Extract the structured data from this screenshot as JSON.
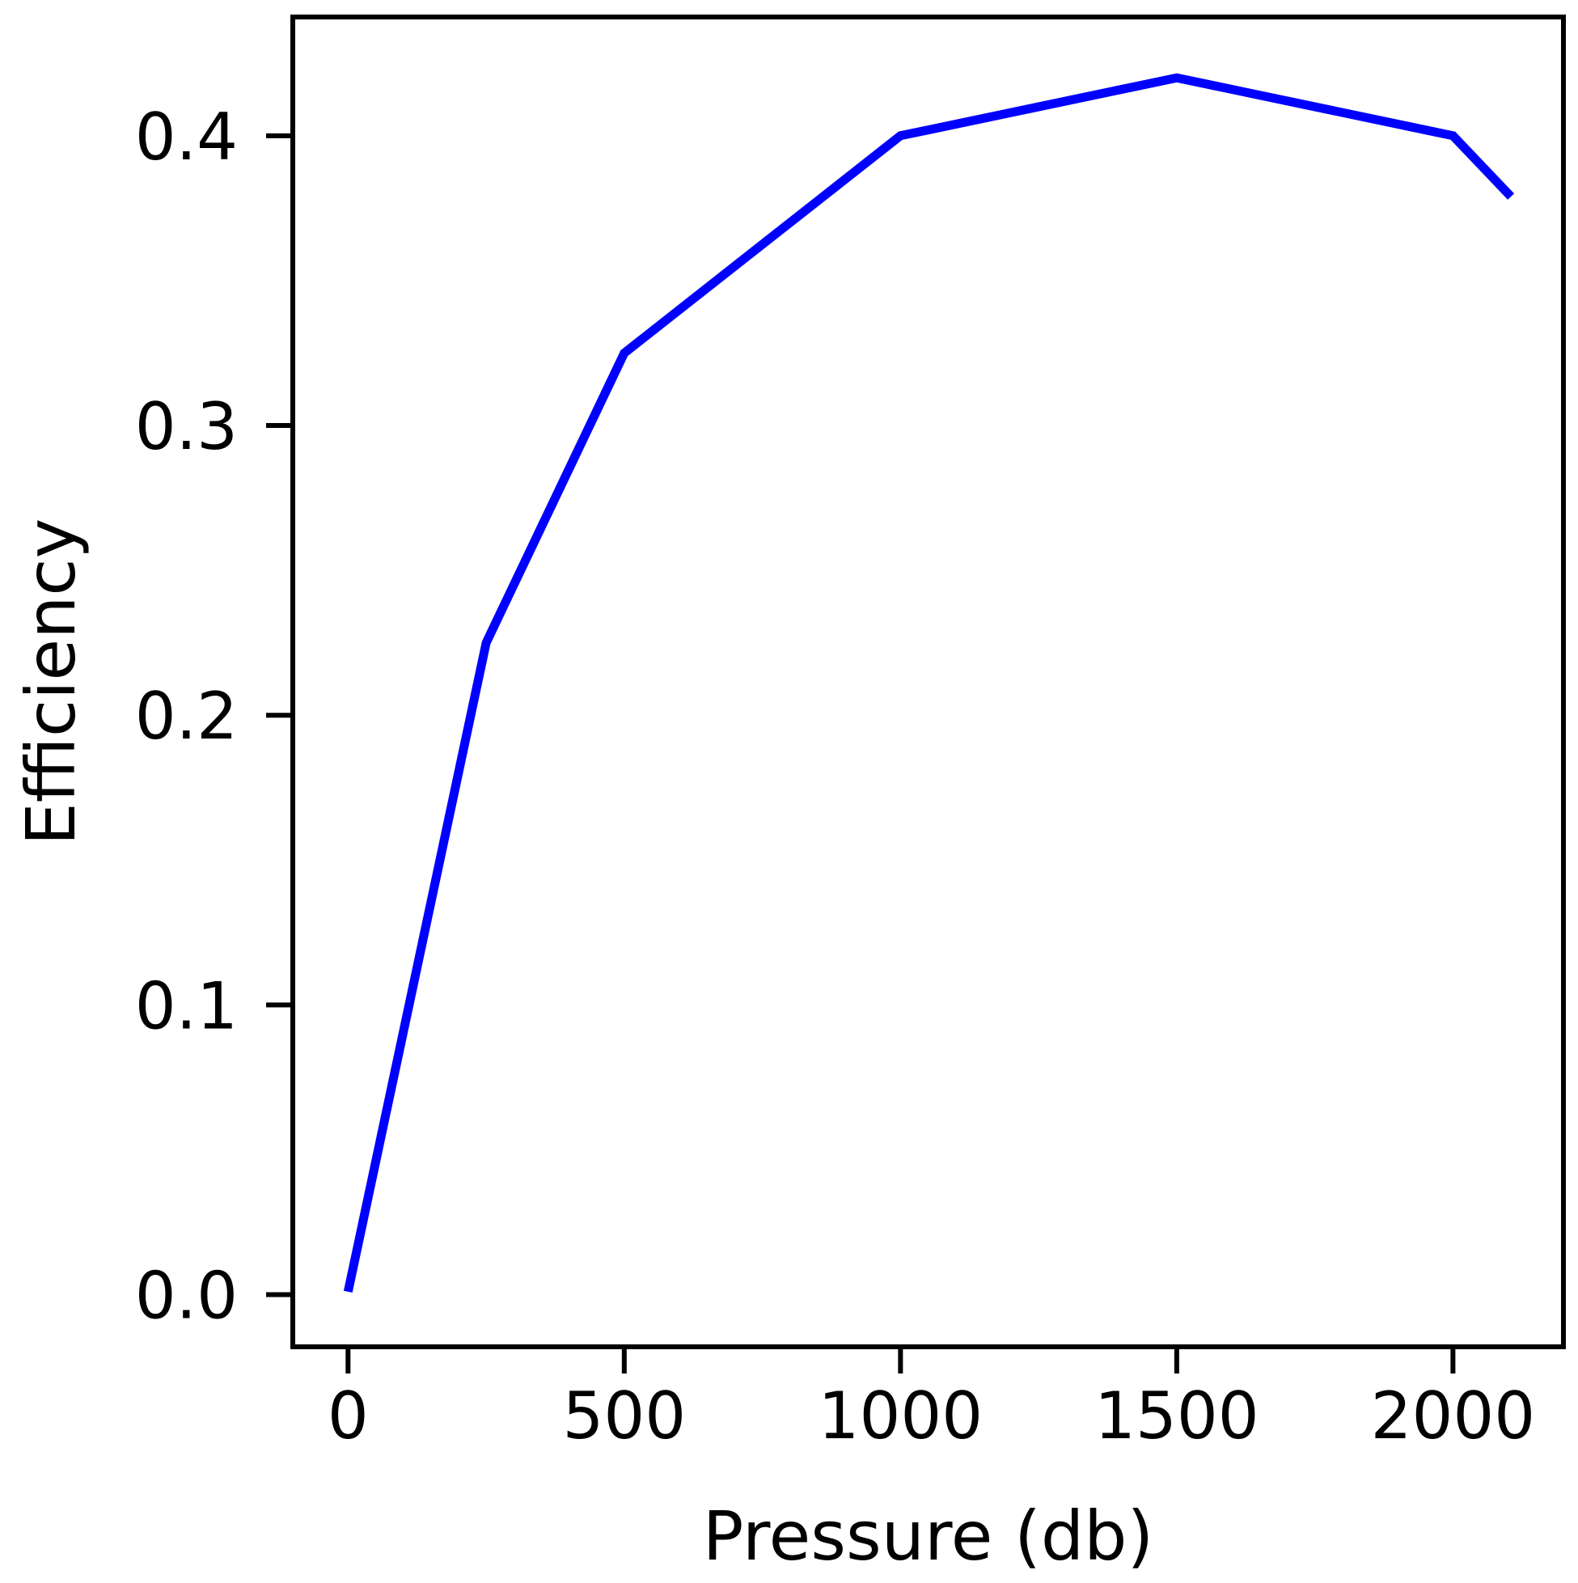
{
  "chart_data": {
    "type": "line",
    "title": "",
    "xlabel": "Pressure (db)",
    "ylabel": "Efficiency",
    "xlim": [
      -100,
      2200
    ],
    "ylim": [
      -0.018,
      0.441
    ],
    "xticks": [
      0,
      500,
      1000,
      1500,
      2000
    ],
    "xtick_labels": [
      "0",
      "500",
      "1000",
      "1500",
      "2000"
    ],
    "yticks": [
      0.0,
      0.1,
      0.2,
      0.3,
      0.4
    ],
    "ytick_labels": [
      "0.0",
      "0.1",
      "0.2",
      "0.3",
      "0.4"
    ],
    "grid": false,
    "series": [
      {
        "color": "#0000ff",
        "x": [
          0,
          250,
          500,
          1000,
          1500,
          2000,
          2105
        ],
        "y": [
          0.001,
          0.225,
          0.325,
          0.4,
          0.42,
          0.4,
          0.379
        ]
      }
    ]
  }
}
